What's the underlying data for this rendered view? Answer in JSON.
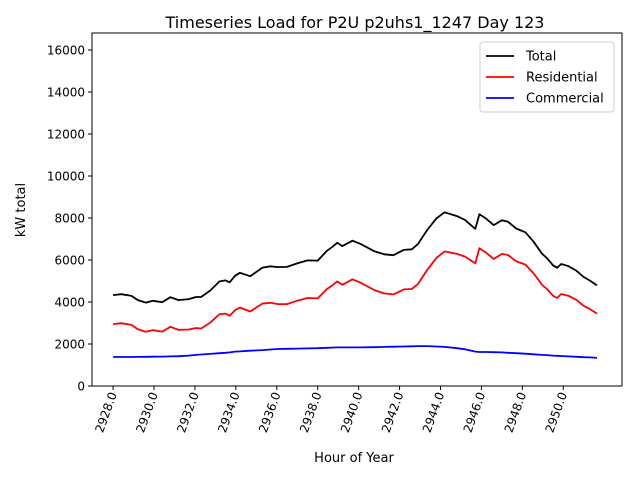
{
  "chart_data": {
    "type": "line",
    "title": "Timeseries Load for P2U p2uhs1_1247  Day 123",
    "xlabel": "Hour of Year",
    "ylabel": "kW total",
    "xlim": [
      2926.97,
      2952.87
    ],
    "ylim": [
      0,
      16810
    ],
    "xticks": [
      2928,
      2930,
      2932,
      2934,
      2936,
      2938,
      2940,
      2942,
      2944,
      2946,
      2948,
      2950
    ],
    "xtick_labels": [
      "2928.0",
      "2930.0",
      "2932.0",
      "2934.0",
      "2936.0",
      "2938.0",
      "2940.0",
      "2942.0",
      "2944.0",
      "2946.0",
      "2948.0",
      "2950.0"
    ],
    "yticks": [
      0,
      2000,
      4000,
      6000,
      8000,
      10000,
      12000,
      14000,
      16000
    ],
    "ytick_labels": [
      "0",
      "2000",
      "4000",
      "6000",
      "8000",
      "10000",
      "12000",
      "14000",
      "16000"
    ],
    "grid": false,
    "legend_position": "top-right",
    "x": [
      2928,
      2928.4,
      2928.9,
      2929.2,
      2929.6,
      2929.95,
      2930.4,
      2930.8,
      2931.2,
      2931.7,
      2932.05,
      2932.3,
      2932.75,
      2933.2,
      2933.5,
      2933.7,
      2933.96,
      2934.2,
      2934.7,
      2935.3,
      2935.7,
      2936.05,
      2936.5,
      2937,
      2937.5,
      2938,
      2938.45,
      2938.7,
      2938.95,
      2939.2,
      2939.7,
      2940.1,
      2940.76,
      2941.25,
      2941.7,
      2942.2,
      2942.6,
      2942.9,
      2943.35,
      2943.8,
      2944.2,
      2944.8,
      2945.2,
      2945.7,
      2945.9,
      2946.2,
      2946.6,
      2947,
      2947.3,
      2947.7,
      2948.15,
      2948.55,
      2948.96,
      2949.2,
      2949.5,
      2949.7,
      2949.9,
      2950.25,
      2950.65,
      2951,
      2951.3,
      2951.65
    ],
    "series": [
      {
        "name": "Total",
        "color": "#000000",
        "values": [
          4330,
          4370,
          4290,
          4095,
          3970,
          4055,
          3990,
          4230,
          4090,
          4140,
          4240,
          4240,
          4550,
          4980,
          5030,
          4940,
          5250,
          5390,
          5230,
          5640,
          5700,
          5660,
          5670,
          5840,
          5980,
          5970,
          6440,
          6610,
          6820,
          6660,
          6920,
          6760,
          6420,
          6270,
          6230,
          6480,
          6510,
          6760,
          7430,
          7980,
          8270,
          8090,
          7910,
          7480,
          8180,
          7990,
          7660,
          7890,
          7820,
          7500,
          7320,
          6870,
          6300,
          6090,
          5750,
          5630,
          5810,
          5710,
          5480,
          5190,
          5020,
          4790
        ]
      },
      {
        "name": "Residential",
        "color": "#ff0000",
        "values": [
          2950,
          2990,
          2910,
          2710,
          2580,
          2660,
          2590,
          2820,
          2670,
          2690,
          2760,
          2740,
          3020,
          3420,
          3450,
          3340,
          3610,
          3740,
          3550,
          3930,
          3960,
          3900,
          3900,
          4060,
          4190,
          4170,
          4620,
          4780,
          4980,
          4820,
          5080,
          4920,
          4570,
          4410,
          4360,
          4600,
          4620,
          4860,
          5530,
          6100,
          6410,
          6290,
          6160,
          5840,
          6560,
          6370,
          6050,
          6290,
          6240,
          5940,
          5780,
          5360,
          4820,
          4620,
          4300,
          4190,
          4380,
          4300,
          4090,
          3820,
          3660,
          3450
        ]
      },
      {
        "name": "Commercial",
        "color": "#0000ff",
        "values": [
          1380,
          1380,
          1380,
          1385,
          1390,
          1395,
          1400,
          1410,
          1420,
          1450,
          1480,
          1500,
          1530,
          1560,
          1580,
          1600,
          1640,
          1650,
          1680,
          1710,
          1740,
          1760,
          1770,
          1780,
          1790,
          1800,
          1820,
          1830,
          1840,
          1840,
          1840,
          1840,
          1850,
          1860,
          1870,
          1880,
          1890,
          1900,
          1900,
          1880,
          1860,
          1800,
          1750,
          1640,
          1620,
          1620,
          1610,
          1600,
          1580,
          1560,
          1540,
          1510,
          1480,
          1470,
          1450,
          1440,
          1430,
          1410,
          1390,
          1370,
          1360,
          1340
        ]
      }
    ]
  }
}
